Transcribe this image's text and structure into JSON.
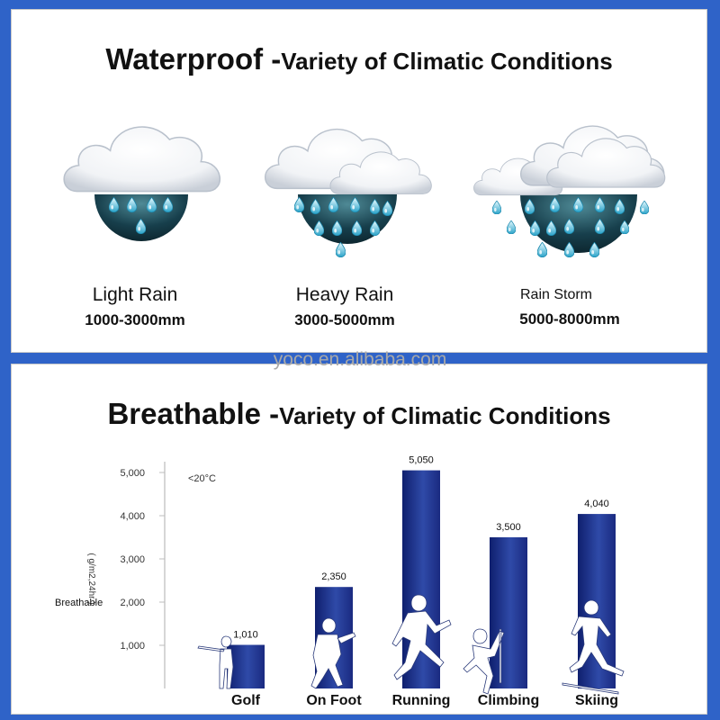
{
  "waterproof": {
    "title_bold": "Waterproof -",
    "title_rest": "Variety of Climatic Conditions",
    "conditions": [
      {
        "name": "Light Rain",
        "range": "1000-3000mm",
        "icon": "light-rain-cloud-icon"
      },
      {
        "name": "Heavy Rain",
        "range": "3000-5000mm",
        "icon": "heavy-rain-cloud-icon"
      },
      {
        "name": "Rain Storm",
        "range": "5000-8000mm",
        "icon": "rain-storm-cloud-icon"
      }
    ]
  },
  "watermark": "yoco.en.alibaba.com",
  "breathable": {
    "title_bold": "Breathable -",
    "title_rest": "Variety of Climatic Conditions"
  },
  "chart_data": {
    "type": "bar",
    "categories": [
      "Golf",
      "On Foot",
      "Running",
      "Climbing",
      "Skiing"
    ],
    "values": [
      1010,
      2350,
      5050,
      3500,
      4040
    ],
    "value_labels": [
      "1,010",
      "2,350",
      "5,050",
      "3,500",
      "4,040"
    ],
    "yticks": [
      1000,
      2000,
      3000,
      4000,
      5000
    ],
    "ytick_labels": [
      "1,000",
      "2,000",
      "3,000",
      "4,000",
      "5,000"
    ],
    "ylim": [
      0,
      5250
    ],
    "ylabel": "Breathable",
    "yunit": "( g/m2,24hr )",
    "annotation": "<20°C",
    "bar_color": "#1c2f8c",
    "athlete_icons": [
      "golfer-icon",
      "hiker-icon",
      "runner-icon",
      "climber-icon",
      "skier-icon"
    ]
  }
}
